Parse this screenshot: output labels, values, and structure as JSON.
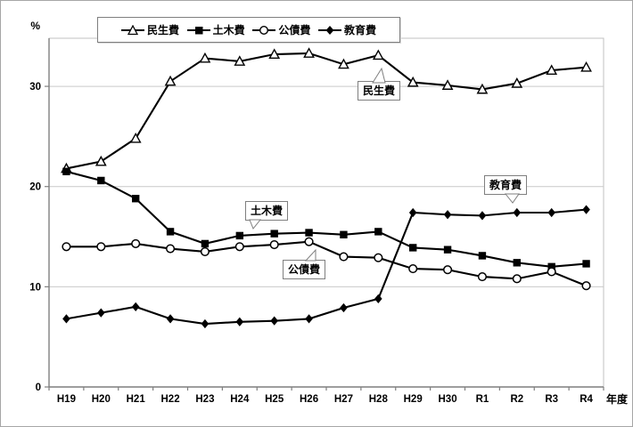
{
  "figure": {
    "unit_label": "%",
    "x_axis_title": "年度"
  },
  "chart_data": {
    "type": "line",
    "title": "",
    "xlabel": "年度",
    "ylabel": "%",
    "categories": [
      "H19",
      "H20",
      "H21",
      "H22",
      "H23",
      "H24",
      "H25",
      "H26",
      "H27",
      "H28",
      "H29",
      "H30",
      "R1",
      "R2",
      "R3",
      "R4"
    ],
    "y_ticks": [
      0,
      10,
      20,
      30
    ],
    "ylim": [
      0,
      34.8
    ],
    "grid": "horizontal",
    "legend_position": "top",
    "line_color": "#000000",
    "grid_color": "#c9c9c9",
    "axis_color": "#7f7f7f",
    "series": [
      {
        "name": "民生費",
        "marker": "triangle-open",
        "values": [
          21.8,
          22.5,
          24.8,
          30.5,
          32.8,
          32.5,
          33.2,
          33.3,
          32.2,
          33.1,
          30.4,
          30.1,
          29.7,
          30.3,
          31.6,
          31.9
        ]
      },
      {
        "name": "土木費",
        "marker": "square-filled",
        "values": [
          21.5,
          20.6,
          18.8,
          15.5,
          14.3,
          15.1,
          15.3,
          15.4,
          15.2,
          15.5,
          13.9,
          13.7,
          13.1,
          12.4,
          12.0,
          12.3
        ]
      },
      {
        "name": "公債費",
        "marker": "circle-open",
        "values": [
          14.0,
          14.0,
          14.3,
          13.8,
          13.5,
          14.0,
          14.2,
          14.5,
          13.0,
          12.9,
          11.8,
          11.7,
          11.0,
          10.8,
          11.5,
          10.1
        ]
      },
      {
        "name": "教育費",
        "marker": "diamond-filled",
        "values": [
          6.8,
          7.4,
          8.0,
          6.8,
          6.3,
          6.5,
          6.6,
          6.8,
          7.9,
          8.8,
          17.4,
          17.2,
          17.1,
          17.4,
          17.4,
          17.7
        ]
      }
    ]
  },
  "callouts": [
    {
      "label": "民生費"
    },
    {
      "label": "土木費"
    },
    {
      "label": "公債費"
    },
    {
      "label": "教育費"
    }
  ]
}
